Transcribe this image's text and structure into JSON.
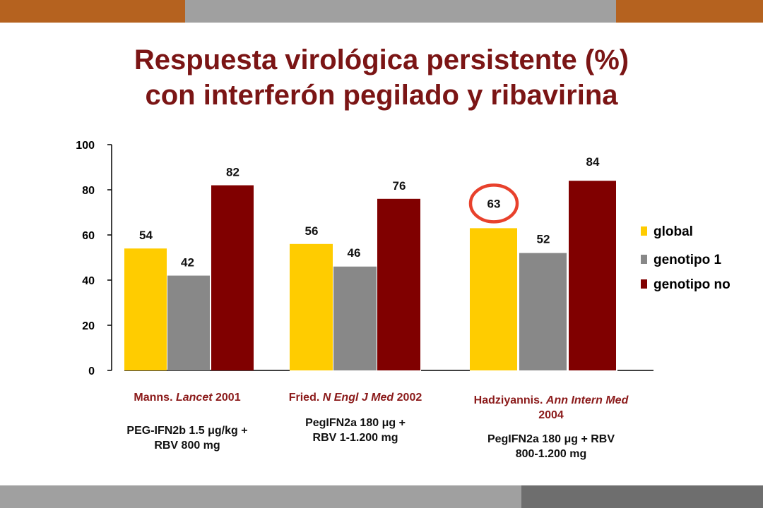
{
  "colors": {
    "band_orange": "#b5621f",
    "band_gray": "#a0a0a0",
    "band_dark_gray": "#6e6e6e",
    "title": "#7b1515",
    "global": "#ffcc00",
    "genotipo_1": "#888888",
    "genotipo_no": "#800000",
    "highlight_circle": "#e8412c"
  },
  "title": {
    "line1": "Respuesta virológica persistente (%)",
    "line2": "con interferón pegilado y ribavirina"
  },
  "chart_data": {
    "type": "bar",
    "categories": [
      "Manns. Lancet 2001",
      "Fried. N Engl J Med 2002",
      "Hadziyannis. Ann Intern Med 2004"
    ],
    "series": [
      {
        "name": "global",
        "values": [
          54,
          56,
          63
        ]
      },
      {
        "name": "genotipo 1",
        "values": [
          42,
          46,
          52
        ]
      },
      {
        "name": "genotipo no",
        "values": [
          82,
          76,
          84
        ]
      }
    ],
    "ylim": [
      0,
      100
    ],
    "yticks": [
      0,
      20,
      40,
      60,
      80,
      100
    ],
    "grid": false,
    "legend_position": "right",
    "highlighted_value": {
      "category_index": 2,
      "series_index": 0,
      "value": 63
    }
  },
  "studies": [
    {
      "author": "Manns. ",
      "journal": "Lancet",
      "year": " 2001",
      "regimen_line1": "PEG-IFN2b 1.5 μg/kg +",
      "regimen_line2": "RBV 800 mg"
    },
    {
      "author": "Fried. ",
      "journal": "N Engl J Med",
      "year": " 2002",
      "regimen_line1": "PegIFN2a 180 μg +",
      "regimen_line2": "RBV 1-1.200 mg"
    },
    {
      "author": "Hadziyannis. ",
      "journal": "Ann Intern Med",
      "year": " 2004",
      "regimen_line1": "PegIFN2a 180 μg + RBV",
      "regimen_line2": "800-1.200 mg"
    }
  ]
}
